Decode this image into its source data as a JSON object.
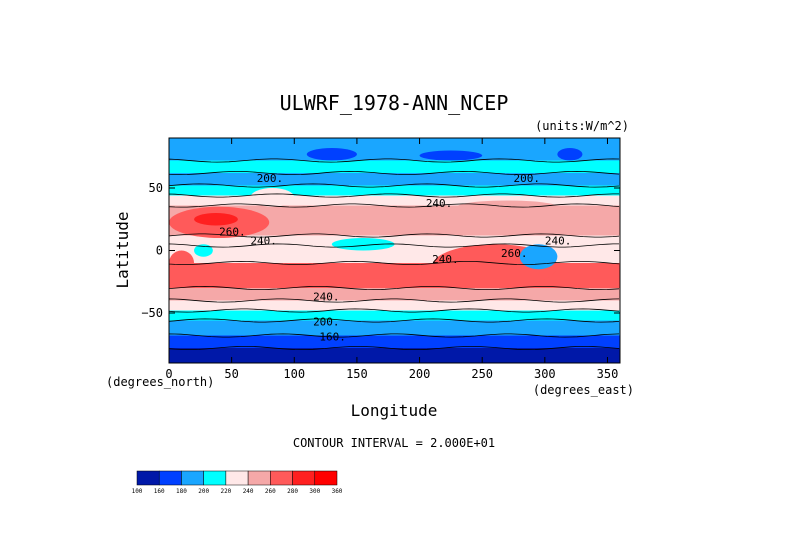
{
  "chart_data": {
    "type": "heatmap",
    "title": "ULWRF_1978-ANN_NCEP",
    "units": "(units:W/m^2)",
    "xlabel": "Longitude",
    "ylabel": "Latitude",
    "x_unit_label": "(degrees_east)",
    "y_unit_label": "(degrees_north)",
    "xlim": [
      0,
      360
    ],
    "ylim": [
      -90,
      90
    ],
    "x_ticks": [
      0,
      50,
      100,
      150,
      200,
      250,
      300,
      350
    ],
    "y_ticks": [
      50,
      0,
      -50
    ],
    "contour_interval_text": "CONTOUR INTERVAL = 2.000E+01",
    "contour_labels": [
      {
        "text": "200.",
        "lon": 70,
        "lat": 55
      },
      {
        "text": "200.",
        "lon": 275,
        "lat": 55
      },
      {
        "text": "240.",
        "lon": 205,
        "lat": 35
      },
      {
        "text": "260.",
        "lon": 40,
        "lat": 12
      },
      {
        "text": "240.",
        "lon": 65,
        "lat": 5
      },
      {
        "text": "240.",
        "lon": 210,
        "lat": -10
      },
      {
        "text": "260.",
        "lon": 265,
        "lat": -5
      },
      {
        "text": "240.",
        "lon": 300,
        "lat": 5
      },
      {
        "text": "240.",
        "lon": 115,
        "lat": -40
      },
      {
        "text": "200.",
        "lon": 115,
        "lat": -60
      },
      {
        "text": "160.",
        "lon": 120,
        "lat": -72
      }
    ],
    "colorbar": {
      "levels": [
        "100",
        "160",
        "180",
        "200",
        "220",
        "240",
        "260",
        "280",
        "300",
        "360"
      ],
      "colors": [
        "#0018a8",
        "#0040ff",
        "#1aa6ff",
        "#00ffff",
        "#ffe8e8",
        "#f5a8a8",
        "#ff5a5a",
        "#ff2020",
        "#ff0000"
      ]
    },
    "bands": [
      {
        "lat_top": 90,
        "lat_bot": 72,
        "color": "#1aa6ff"
      },
      {
        "lat_top": 72,
        "lat_bot": 62,
        "color": "#00ffff"
      },
      {
        "lat_top": 62,
        "lat_bot": 52,
        "color": "#1aa6ff"
      },
      {
        "lat_top": 52,
        "lat_bot": 44,
        "color": "#00ffff"
      },
      {
        "lat_top": 44,
        "lat_bot": 36,
        "color": "#ffe8e8"
      },
      {
        "lat_top": 36,
        "lat_bot": 12,
        "color": "#f5a8a8"
      },
      {
        "lat_top": 12,
        "lat_bot": 4,
        "color": "#ffe8e8"
      },
      {
        "lat_top": 4,
        "lat_bot": -10,
        "color": "#ffe8e8"
      },
      {
        "lat_top": -10,
        "lat_bot": -30,
        "color": "#ff5a5a"
      },
      {
        "lat_top": -30,
        "lat_bot": -40,
        "color": "#f5a8a8"
      },
      {
        "lat_top": -40,
        "lat_bot": -48,
        "color": "#ffe8e8"
      },
      {
        "lat_top": -48,
        "lat_bot": -56,
        "color": "#00ffff"
      },
      {
        "lat_top": -56,
        "lat_bot": -68,
        "color": "#1aa6ff"
      },
      {
        "lat_top": -68,
        "lat_bot": -78,
        "color": "#0040ff"
      },
      {
        "lat_top": -78,
        "lat_bot": -90,
        "color": "#0018a8"
      }
    ],
    "features": [
      {
        "lon1": 0,
        "lon2": 80,
        "lat1": 10,
        "lat2": 35,
        "color": "#ff5a5a"
      },
      {
        "lon1": 20,
        "lon2": 55,
        "lat1": 20,
        "lat2": 30,
        "color": "#ff2020"
      },
      {
        "lon1": 65,
        "lon2": 100,
        "lat1": 35,
        "lat2": 50,
        "color": "#ffe8e8"
      },
      {
        "lon1": 230,
        "lon2": 310,
        "lat1": 30,
        "lat2": 40,
        "color": "#f5a8a8"
      },
      {
        "lon1": 210,
        "lon2": 310,
        "lat1": -30,
        "lat2": 5,
        "color": "#ff5a5a"
      },
      {
        "lon1": 280,
        "lon2": 310,
        "lat1": -15,
        "lat2": 5,
        "color": "#1aa6ff"
      },
      {
        "lon1": 20,
        "lon2": 35,
        "lat1": -5,
        "lat2": 5,
        "color": "#00ffff"
      },
      {
        "lon1": 130,
        "lon2": 180,
        "lat1": 0,
        "lat2": 10,
        "color": "#00ffff"
      },
      {
        "lon1": 0,
        "lon2": 20,
        "lat1": -20,
        "lat2": 0,
        "color": "#ff5a5a"
      },
      {
        "lon1": 110,
        "lon2": 150,
        "lat1": 72,
        "lat2": 82,
        "color": "#0040ff"
      },
      {
        "lon1": 200,
        "lon2": 250,
        "lat1": 72,
        "lat2": 80,
        "color": "#0040ff"
      },
      {
        "lon1": 310,
        "lon2": 330,
        "lat1": 72,
        "lat2": 82,
        "color": "#0040ff"
      },
      {
        "lon1": 0,
        "lon2": 360,
        "lat1": -72,
        "lat2": -68,
        "color": "#0040ff"
      }
    ]
  }
}
